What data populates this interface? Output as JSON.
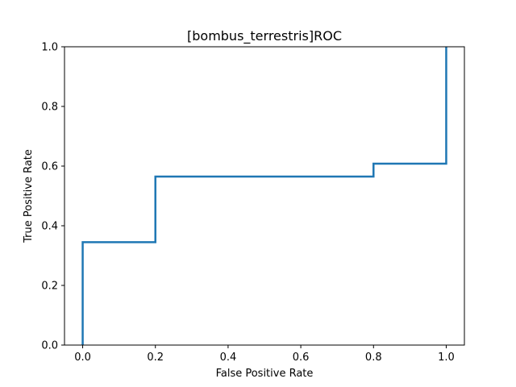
{
  "chart_data": {
    "type": "line",
    "title": "[bombus_terrestris]ROC",
    "xlabel": "False Positive Rate",
    "ylabel": "True Positive Rate",
    "xlim": [
      -0.05,
      1.05
    ],
    "ylim": [
      0.0,
      1.0
    ],
    "xticks": [
      "0.0",
      "0.2",
      "0.4",
      "0.6",
      "0.8",
      "1.0"
    ],
    "yticks": [
      "0.0",
      "0.2",
      "0.4",
      "0.6",
      "0.8",
      "1.0"
    ],
    "grid": false,
    "series": [
      {
        "color": "#1f77b4",
        "x": [
          0.0,
          0.0,
          0.2,
          0.2,
          0.8,
          0.8,
          1.0,
          1.0
        ],
        "y": [
          0.0,
          0.345,
          0.345,
          0.565,
          0.565,
          0.608,
          0.608,
          1.0
        ]
      }
    ]
  }
}
